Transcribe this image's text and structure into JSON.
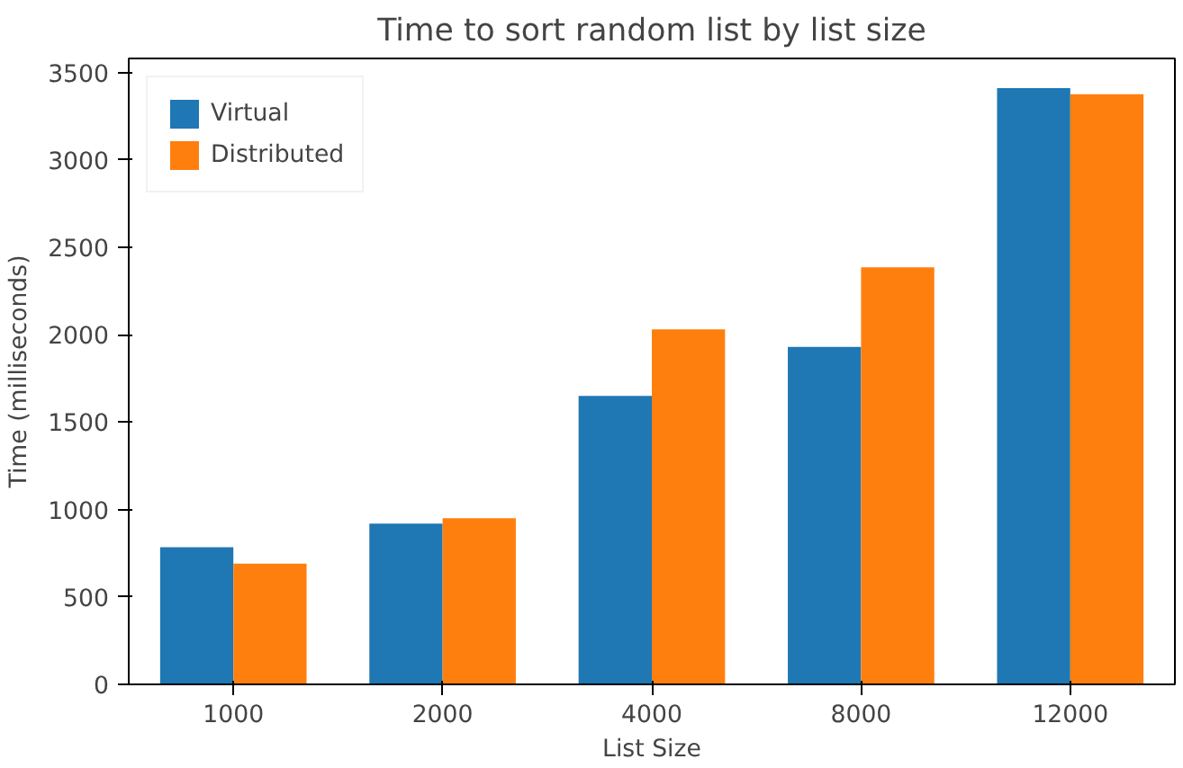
{
  "chart_data": {
    "type": "bar",
    "title": "Time to sort random list by list size",
    "xlabel": "List Size",
    "ylabel": "Time (milliseconds)",
    "categories": [
      "1000",
      "2000",
      "4000",
      "8000",
      "12000"
    ],
    "series": [
      {
        "name": "Virtual",
        "color": "#1f77b4",
        "values": [
          785,
          920,
          1650,
          1930,
          3410
        ]
      },
      {
        "name": "Distributed",
        "color": "#ff7f0e",
        "values": [
          690,
          950,
          2030,
          2385,
          3375
        ]
      }
    ],
    "ylim": [
      0,
      3580
    ],
    "yticks": [
      0,
      500,
      1000,
      1500,
      2000,
      2500,
      3000,
      3500
    ],
    "grid": false,
    "legend": "top left"
  }
}
